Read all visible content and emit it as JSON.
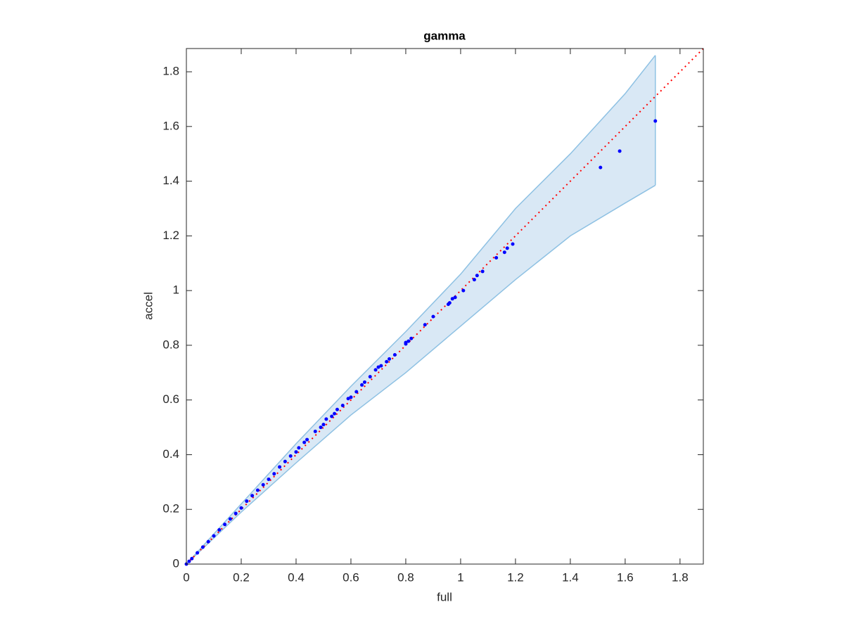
{
  "chart_data": {
    "type": "scatter",
    "title": "gamma",
    "x_label": "full",
    "y_label": "accel",
    "xlim": [
      0,
      1.885
    ],
    "ylim": [
      0,
      1.885
    ],
    "xticks": [
      0,
      0.2,
      0.4,
      0.6,
      0.8,
      1,
      1.2,
      1.4,
      1.6,
      1.8
    ],
    "yticks": [
      0,
      0.2,
      0.4,
      0.6,
      0.8,
      1,
      1.2,
      1.4,
      1.6,
      1.8
    ],
    "band": {
      "color": "#8ec1e3",
      "fill": "#d9e8f5",
      "x": [
        0,
        0.2,
        0.4,
        0.6,
        0.8,
        1.0,
        1.2,
        1.4,
        1.6,
        1.71
      ],
      "upper": [
        0,
        0.22,
        0.44,
        0.65,
        0.85,
        1.06,
        1.3,
        1.5,
        1.72,
        1.86
      ],
      "lower": [
        0,
        0.19,
        0.37,
        0.545,
        0.7,
        0.87,
        1.04,
        1.2,
        1.32,
        1.385
      ]
    },
    "reference_line": {
      "color": "#ff0000",
      "x": [
        0,
        1.885
      ],
      "values": [
        0,
        1.885
      ]
    },
    "series": [
      {
        "color": "#0000ff",
        "x": [
          0,
          0.01,
          0.02,
          0.04,
          0.06,
          0.08,
          0.1,
          0.12,
          0.14,
          0.16,
          0.18,
          0.2,
          0.22,
          0.24,
          0.26,
          0.28,
          0.3,
          0.32,
          0.34,
          0.36,
          0.38,
          0.4,
          0.41,
          0.43,
          0.44,
          0.47,
          0.49,
          0.5,
          0.51,
          0.53,
          0.54,
          0.55,
          0.57,
          0.59,
          0.6,
          0.62,
          0.64,
          0.65,
          0.67,
          0.69,
          0.7,
          0.71,
          0.73,
          0.74,
          0.76,
          0.8,
          0.8,
          0.81,
          0.82,
          0.87,
          0.9,
          0.955,
          0.96,
          0.97,
          0.98,
          1.01,
          1.05,
          1.06,
          1.08,
          1.13,
          1.16,
          1.17,
          1.19,
          1.51,
          1.58,
          1.71
        ],
        "values": [
          0,
          0.01,
          0.02,
          0.041,
          0.062,
          0.082,
          0.103,
          0.125,
          0.145,
          0.165,
          0.185,
          0.205,
          0.23,
          0.25,
          0.27,
          0.29,
          0.31,
          0.33,
          0.355,
          0.375,
          0.395,
          0.41,
          0.425,
          0.445,
          0.455,
          0.485,
          0.5,
          0.51,
          0.53,
          0.54,
          0.55,
          0.565,
          0.58,
          0.605,
          0.61,
          0.63,
          0.655,
          0.665,
          0.685,
          0.71,
          0.72,
          0.725,
          0.74,
          0.75,
          0.765,
          0.805,
          0.81,
          0.815,
          0.825,
          0.875,
          0.905,
          0.95,
          0.955,
          0.97,
          0.975,
          1.0,
          1.04,
          1.055,
          1.07,
          1.12,
          1.14,
          1.155,
          1.17,
          1.45,
          1.51,
          1.62
        ]
      }
    ]
  }
}
